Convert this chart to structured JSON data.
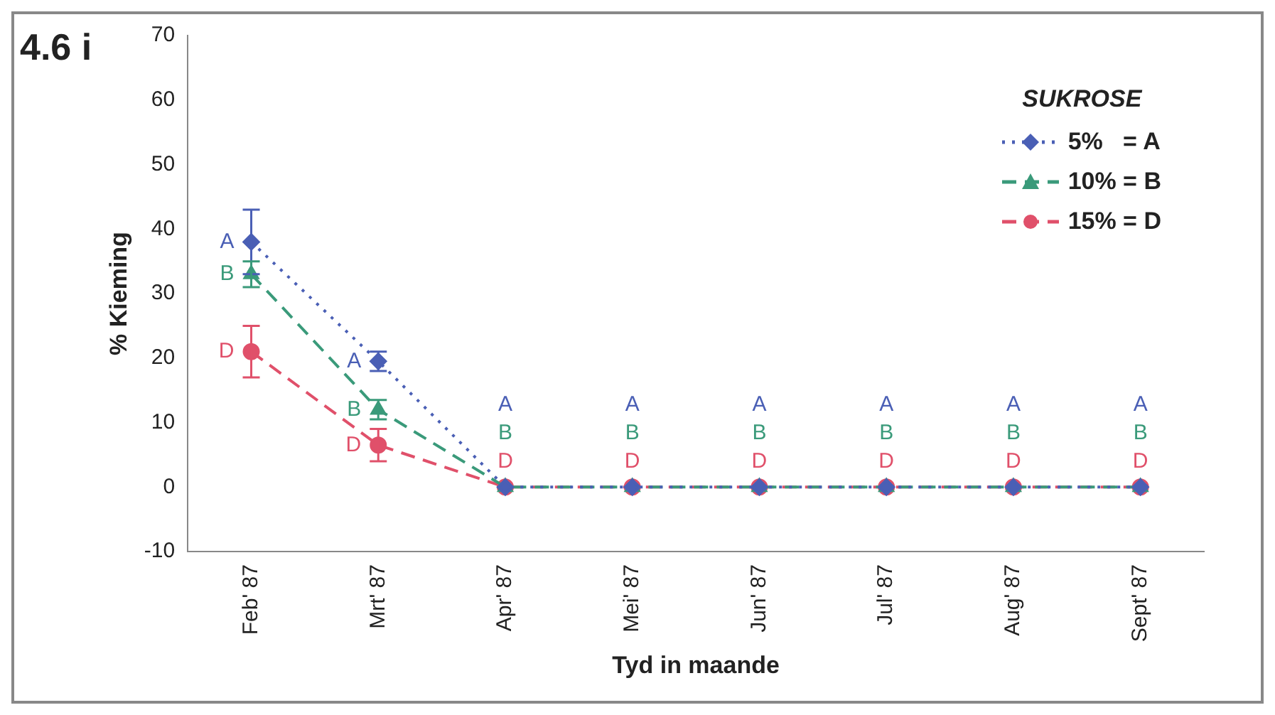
{
  "chart_data": {
    "type": "line",
    "title": "4.6 i",
    "xlabel": "Tyd in maande",
    "ylabel": "% Kieming",
    "legend_title": "SUKROSE",
    "legend": "top right",
    "grid": false,
    "categories": [
      "Feb' 87",
      "Mrt' 87",
      "Apr' 87",
      "Mei' 87",
      "Jun' 87",
      "Jul' 87",
      "Aug' 87",
      "Sept' 87"
    ],
    "ylim": [
      -10,
      70
    ],
    "yticks": [
      -10,
      0,
      10,
      20,
      30,
      40,
      50,
      60,
      70
    ],
    "series": [
      {
        "name": "5%   = A",
        "color": "#4a5fb5",
        "marker": "diamond",
        "line_style": "dotted",
        "values": [
          38,
          19.5,
          0,
          0,
          0,
          0,
          0,
          0
        ],
        "errors": [
          5,
          1.5,
          null,
          null,
          null,
          null,
          null,
          null
        ],
        "value_labels": [
          "A",
          "A",
          "A",
          "A",
          "A",
          "A",
          "A",
          "A"
        ]
      },
      {
        "name": "10% = B",
        "color": "#3a9a7a",
        "marker": "triangle",
        "line_style": "dashed",
        "values": [
          33,
          12,
          0,
          0,
          0,
          0,
          0,
          0
        ],
        "errors": [
          2,
          1.5,
          null,
          null,
          null,
          null,
          null,
          null
        ],
        "value_labels": [
          "B",
          "B",
          "B",
          "B",
          "B",
          "B",
          "B",
          "B"
        ]
      },
      {
        "name": "15% = D",
        "color": "#e0506a",
        "marker": "circle",
        "line_style": "dashed",
        "values": [
          21,
          6.5,
          0,
          0,
          0,
          0,
          0,
          0
        ],
        "errors": [
          4,
          2.5,
          null,
          null,
          null,
          null,
          null,
          null
        ],
        "value_labels": [
          "D",
          "D",
          "D",
          "D",
          "D",
          "D",
          "D",
          "D"
        ]
      }
    ]
  }
}
